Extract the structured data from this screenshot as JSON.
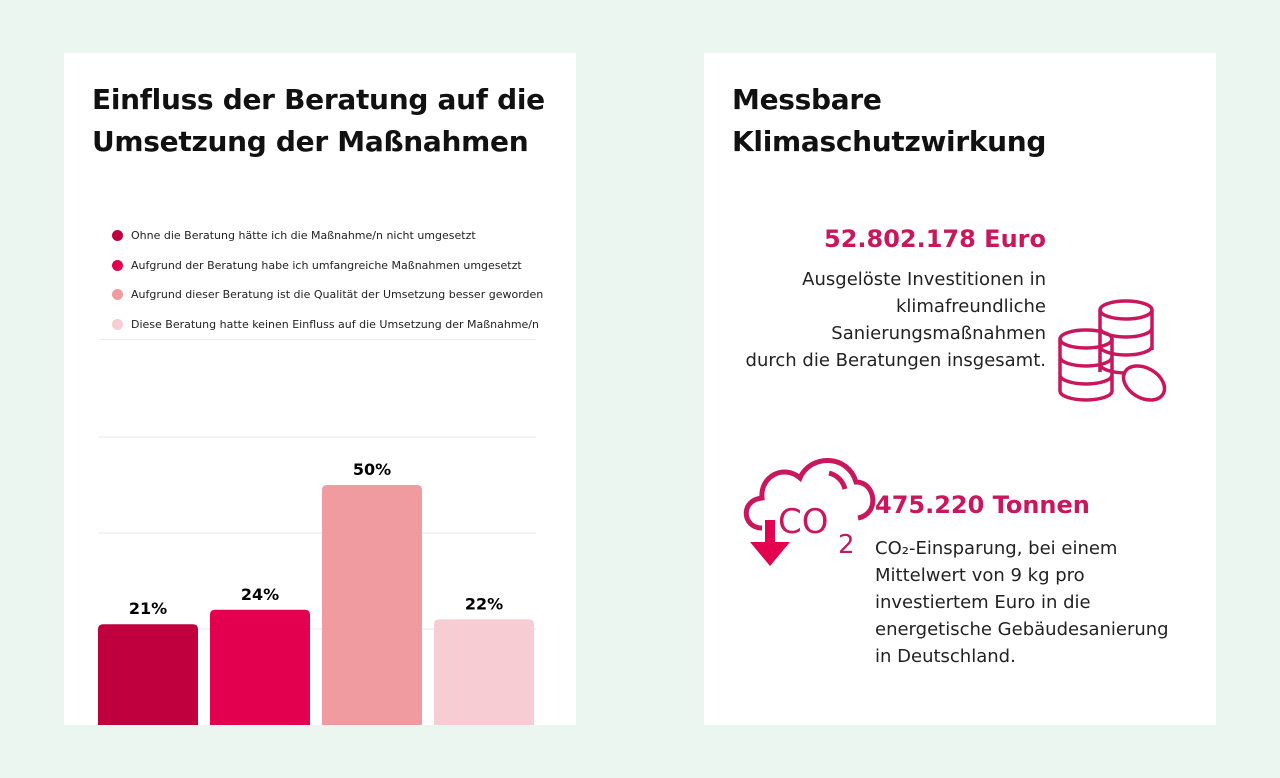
{
  "left": {
    "title_line1": "Einfluss der Beratung auf die",
    "title_line2": "Umsetzung der Maßnahmen"
  },
  "chart_data": {
    "type": "bar",
    "categories": [
      "Ohne die Beratung hätte ich die Maßnahme/n nicht umgesetzt",
      "Aufgrund der Beratung habe ich umfangreiche Maßnahmen umgesetzt",
      "Aufgrund dieser Beratung ist die Qualität der Umsetzung besser geworden",
      "Diese Beratung hatte keinen Einfluss auf die Umsetzung der Maßnahme/n"
    ],
    "values": [
      21,
      24,
      50,
      22
    ],
    "labels": [
      "21%",
      "24%",
      "50%",
      "22%"
    ],
    "colors": [
      "#c0003e",
      "#e2004f",
      "#f09ba0",
      "#f7ccd2"
    ],
    "ylim": [
      0,
      60
    ],
    "grid": true,
    "legend": "top"
  },
  "right": {
    "title_line1": "Messbare",
    "title_line2": "Klimaschutzwirkung",
    "invest_value": "52.802.178 Euro",
    "invest_lines": [
      "Ausgelöste Investitionen in",
      "klimafreundliche",
      "Sanierungsmaßnahmen",
      "durch die Beratungen insgesamt."
    ],
    "co2_value": "475.220 Tonnen",
    "co2_lines": [
      "CO₂-Einsparung, bei einem",
      "Mittelwert von 9 kg pro",
      "investiertem Euro in die",
      "energetische Gebäudesanierung",
      "in Deutschland."
    ],
    "icons": [
      "coins-icon",
      "co2-cloud-down-icon"
    ],
    "accent": "#c8175d"
  }
}
